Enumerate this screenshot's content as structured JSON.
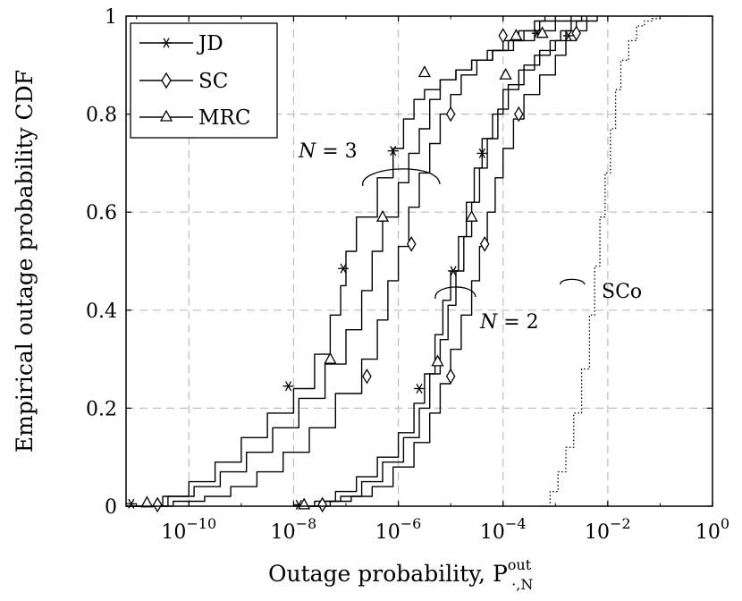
{
  "chart_data": {
    "type": "line",
    "title": "",
    "xlabel": "Outage probability, P",
    "xlabel_sup": "out",
    "xlabel_sub": "·,N",
    "ylabel": "Empirical outage probability CDF",
    "xscale": "log",
    "xlim_exp": [
      -11.2,
      0
    ],
    "ylim": [
      0,
      1
    ],
    "grid": true,
    "x_ticks": [
      {
        "base": "10",
        "exp": "−10",
        "value_exp": -10
      },
      {
        "base": "10",
        "exp": "−8",
        "value_exp": -8
      },
      {
        "base": "10",
        "exp": "−6",
        "value_exp": -6
      },
      {
        "base": "10",
        "exp": "−4",
        "value_exp": -4
      },
      {
        "base": "10",
        "exp": "−2",
        "value_exp": -2
      },
      {
        "base": "10",
        "exp": "0",
        "value_exp": 0
      }
    ],
    "y_ticks": [
      "0",
      "0.2",
      "0.4",
      "0.6",
      "0.8",
      "1"
    ],
    "y_tick_values": [
      0,
      0.2,
      0.4,
      0.6,
      0.8,
      1
    ],
    "legend": {
      "position": "top-left",
      "entries": [
        {
          "label": "JD",
          "marker": "star"
        },
        {
          "label": "SC",
          "marker": "diamond"
        },
        {
          "label": "MRC",
          "marker": "triangle"
        }
      ]
    },
    "series": [
      {
        "name": "JD (N = 3)",
        "marker": "star",
        "log10_x": [
          -11.2,
          -10.5,
          -10.0,
          -9.5,
          -9.0,
          -8.5,
          -8.0,
          -7.6,
          -7.3,
          -7.1,
          -7.0,
          -6.8,
          -6.4,
          -6.1,
          -5.9,
          -5.7,
          -5.5,
          -5.2,
          -4.9,
          -4.6,
          -4.3,
          -4.0,
          -3.7,
          -3.4,
          -3.2
        ],
        "y": [
          0.0,
          0.02,
          0.05,
          0.09,
          0.14,
          0.19,
          0.24,
          0.31,
          0.39,
          0.45,
          0.52,
          0.59,
          0.67,
          0.73,
          0.79,
          0.83,
          0.85,
          0.87,
          0.89,
          0.91,
          0.93,
          0.95,
          0.97,
          0.99,
          1.0
        ],
        "markers_log10_x": [
          -11.1,
          -8.1,
          -7.05,
          -6.1,
          -2.75
        ],
        "markers_y": [
          0.005,
          0.245,
          0.485,
          0.725,
          0.96
        ]
      },
      {
        "name": "MRC (N = 3)",
        "marker": "triangle",
        "log10_x": [
          -11.2,
          -10.4,
          -9.9,
          -9.4,
          -8.9,
          -8.4,
          -7.9,
          -7.4,
          -7.0,
          -6.7,
          -6.5,
          -6.3,
          -6.0,
          -5.8,
          -5.6,
          -5.4,
          -5.2,
          -4.9,
          -4.6,
          -4.2,
          -3.8,
          -3.4,
          -3.0,
          -2.7
        ],
        "y": [
          0.0,
          0.02,
          0.04,
          0.07,
          0.11,
          0.16,
          0.22,
          0.29,
          0.36,
          0.44,
          0.52,
          0.59,
          0.66,
          0.72,
          0.77,
          0.83,
          0.87,
          0.89,
          0.91,
          0.93,
          0.95,
          0.97,
          0.99,
          1.0
        ],
        "markers_log10_x": [
          -10.8,
          -7.3,
          -6.3,
          -5.5,
          -3.75
        ],
        "markers_y": [
          0.007,
          0.3,
          0.59,
          0.885,
          0.96
        ]
      },
      {
        "name": "SC (N = 3)",
        "marker": "diamond",
        "log10_x": [
          -11.2,
          -10.3,
          -9.7,
          -9.2,
          -8.7,
          -8.2,
          -7.7,
          -7.2,
          -6.7,
          -6.4,
          -6.2,
          -6.0,
          -5.8,
          -5.6,
          -5.4,
          -5.2,
          -5.0,
          -4.8,
          -4.5,
          -4.2,
          -3.9,
          -3.6,
          -3.3,
          -3.0
        ],
        "y": [
          0.0,
          0.01,
          0.02,
          0.04,
          0.07,
          0.11,
          0.16,
          0.23,
          0.3,
          0.38,
          0.46,
          0.53,
          0.61,
          0.68,
          0.74,
          0.8,
          0.84,
          0.88,
          0.91,
          0.93,
          0.95,
          0.97,
          0.99,
          1.0
        ],
        "markers_log10_x": [
          -10.6,
          -6.6,
          -5.75,
          -5.0,
          -4.0
        ],
        "markers_y": [
          0.003,
          0.265,
          0.535,
          0.8,
          0.96
        ]
      },
      {
        "name": "JD (N = 2)",
        "marker": "star",
        "log10_x": [
          -8.0,
          -7.6,
          -7.2,
          -6.8,
          -6.4,
          -6.0,
          -5.7,
          -5.5,
          -5.3,
          -5.15,
          -5.0,
          -4.85,
          -4.7,
          -4.55,
          -4.4,
          -4.2,
          -4.0,
          -3.7,
          -3.4,
          -3.1,
          -2.9,
          -2.7,
          -2.5
        ],
        "y": [
          0.0,
          0.01,
          0.03,
          0.06,
          0.1,
          0.15,
          0.21,
          0.27,
          0.35,
          0.42,
          0.48,
          0.55,
          0.62,
          0.69,
          0.75,
          0.8,
          0.85,
          0.89,
          0.92,
          0.95,
          0.97,
          0.99,
          1.0
        ],
        "markers_log10_x": [
          -7.9,
          -5.6,
          -4.95,
          -4.4,
          -3.35
        ],
        "markers_y": [
          0.003,
          0.24,
          0.48,
          0.72,
          0.965
        ]
      },
      {
        "name": "MRC (N = 2)",
        "marker": "triangle",
        "log10_x": [
          -7.9,
          -7.5,
          -7.1,
          -6.7,
          -6.3,
          -5.9,
          -5.6,
          -5.4,
          -5.2,
          -5.05,
          -4.9,
          -4.75,
          -4.6,
          -4.45,
          -4.3,
          -4.1,
          -3.9,
          -3.6,
          -3.3,
          -3.0,
          -2.8,
          -2.6,
          -2.4
        ],
        "y": [
          0.0,
          0.01,
          0.02,
          0.05,
          0.09,
          0.14,
          0.2,
          0.27,
          0.34,
          0.41,
          0.48,
          0.55,
          0.62,
          0.69,
          0.75,
          0.81,
          0.86,
          0.9,
          0.93,
          0.95,
          0.97,
          0.99,
          1.0
        ],
        "markers_log10_x": [
          -7.8,
          -5.25,
          -4.6,
          -3.95,
          -3.25
        ],
        "markers_y": [
          0.003,
          0.295,
          0.59,
          0.88,
          0.965
        ]
      },
      {
        "name": "SC (N = 2)",
        "marker": "diamond",
        "log10_x": [
          -7.8,
          -7.3,
          -6.9,
          -6.5,
          -6.1,
          -5.7,
          -5.4,
          -5.2,
          -5.0,
          -4.8,
          -4.6,
          -4.45,
          -4.3,
          -4.15,
          -4.0,
          -3.8,
          -3.6,
          -3.3,
          -3.0,
          -2.8,
          -2.6,
          -2.4,
          -2.2
        ],
        "y": [
          0.0,
          0.01,
          0.02,
          0.04,
          0.08,
          0.13,
          0.19,
          0.25,
          0.32,
          0.39,
          0.46,
          0.53,
          0.6,
          0.67,
          0.73,
          0.79,
          0.84,
          0.88,
          0.92,
          0.95,
          0.97,
          0.99,
          1.0
        ],
        "markers_log10_x": [
          -7.45,
          -5.0,
          -4.35,
          -3.7,
          -2.6
        ],
        "markers_y": [
          0.003,
          0.265,
          0.535,
          0.8,
          0.965
        ]
      },
      {
        "name": "SCo",
        "marker": "none",
        "dotted": true,
        "log10_x": [
          -3.25,
          -3.1,
          -2.95,
          -2.8,
          -2.65,
          -2.5,
          -2.35,
          -2.25,
          -2.15,
          -2.05,
          -1.95,
          -1.85,
          -1.75,
          -1.6,
          -1.45,
          -1.3,
          -1.15,
          -1.0,
          -0.8,
          -0.5
        ],
        "y": [
          0.0,
          0.03,
          0.07,
          0.12,
          0.19,
          0.28,
          0.39,
          0.49,
          0.59,
          0.68,
          0.77,
          0.85,
          0.91,
          0.95,
          0.98,
          0.99,
          0.995,
          1.0,
          1.0,
          1.0
        ]
      }
    ],
    "annotations": [
      {
        "label": "N = 3",
        "var": "N",
        "rest": " = 3"
      },
      {
        "label": "N = 2",
        "var": "N",
        "rest": " = 2"
      },
      {
        "label": "SCo",
        "var": "",
        "rest": "SCo"
      }
    ]
  }
}
